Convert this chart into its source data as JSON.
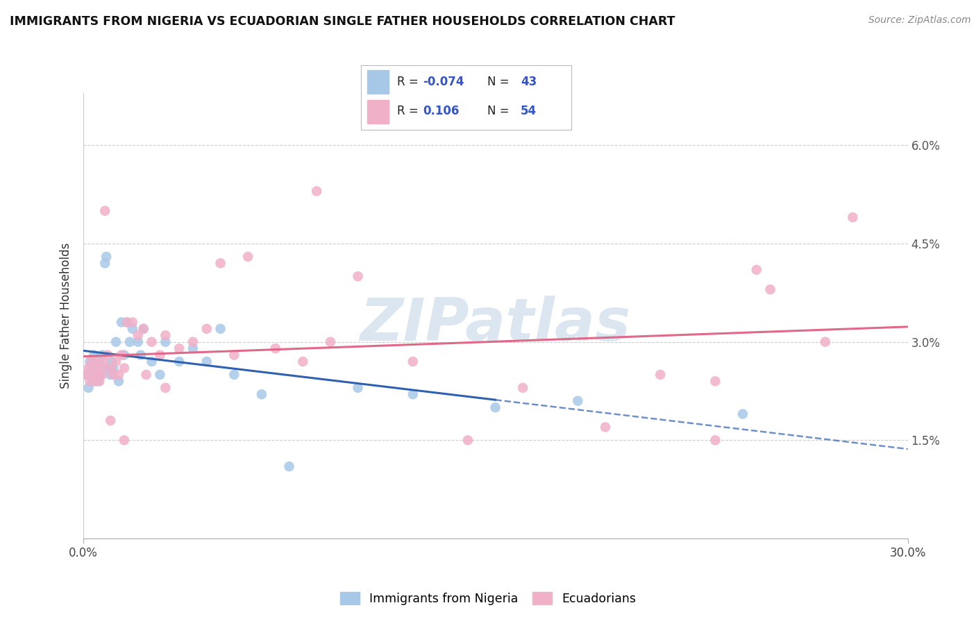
{
  "title": "IMMIGRANTS FROM NIGERIA VS ECUADORIAN SINGLE FATHER HOUSEHOLDS CORRELATION CHART",
  "source": "Source: ZipAtlas.com",
  "ylabel": "Single Father Households",
  "xlim": [
    0.0,
    30.0
  ],
  "ylim": [
    0.0,
    6.8
  ],
  "yticks": [
    0.0,
    1.5,
    3.0,
    4.5,
    6.0
  ],
  "ytick_labels": [
    "",
    "1.5%",
    "3.0%",
    "4.5%",
    "6.0%"
  ],
  "xtick_labels": [
    "0.0%",
    "30.0%"
  ],
  "color_blue": "#a8c8e8",
  "color_pink": "#f0b0c8",
  "line_color_blue": "#3060b0",
  "line_color_pink": "#e06888",
  "watermark_color": "#d8e4f0",
  "watermark_text": "ZIPatlas",
  "nigeria_x": [
    0.15,
    0.2,
    0.25,
    0.3,
    0.35,
    0.4,
    0.45,
    0.5,
    0.55,
    0.6,
    0.65,
    0.7,
    0.8,
    0.85,
    0.9,
    1.0,
    1.05,
    1.1,
    1.2,
    1.3,
    1.4,
    1.5,
    1.6,
    1.7,
    1.8,
    2.0,
    2.1,
    2.2,
    2.5,
    2.8,
    3.0,
    3.5,
    4.0,
    4.5,
    5.0,
    5.5,
    6.5,
    7.5,
    10.0,
    12.0,
    15.0,
    18.0,
    24.0
  ],
  "nigeria_y": [
    2.5,
    2.3,
    2.7,
    2.6,
    2.4,
    2.8,
    2.5,
    2.6,
    2.4,
    2.7,
    2.5,
    2.8,
    4.2,
    4.3,
    2.6,
    2.5,
    2.7,
    2.6,
    3.0,
    2.4,
    3.3,
    2.8,
    3.3,
    3.0,
    3.2,
    3.0,
    2.8,
    3.2,
    2.7,
    2.5,
    3.0,
    2.7,
    2.9,
    2.7,
    3.2,
    2.5,
    2.2,
    1.1,
    2.3,
    2.2,
    2.0,
    2.1,
    1.9
  ],
  "ecuador_x": [
    0.1,
    0.2,
    0.25,
    0.3,
    0.35,
    0.4,
    0.45,
    0.5,
    0.55,
    0.6,
    0.65,
    0.7,
    0.75,
    0.8,
    0.9,
    1.0,
    1.1,
    1.2,
    1.3,
    1.4,
    1.5,
    1.6,
    1.8,
    2.0,
    2.2,
    2.5,
    2.8,
    3.0,
    3.5,
    4.0,
    4.5,
    5.0,
    5.5,
    6.0,
    7.0,
    8.0,
    9.0,
    10.0,
    12.0,
    14.0,
    16.0,
    19.0,
    21.0,
    23.0,
    25.0,
    27.0,
    28.0,
    2.3,
    1.5,
    3.0,
    1.0,
    8.5,
    23.0,
    24.5
  ],
  "ecuador_y": [
    2.5,
    2.6,
    2.4,
    2.7,
    2.5,
    2.6,
    2.4,
    2.7,
    2.5,
    2.4,
    2.6,
    2.5,
    2.7,
    5.0,
    2.8,
    2.6,
    2.5,
    2.7,
    2.5,
    2.8,
    2.6,
    3.3,
    3.3,
    3.1,
    3.2,
    3.0,
    2.8,
    3.1,
    2.9,
    3.0,
    3.2,
    4.2,
    2.8,
    4.3,
    2.9,
    2.7,
    3.0,
    4.0,
    2.7,
    1.5,
    2.3,
    1.7,
    2.5,
    2.4,
    3.8,
    3.0,
    4.9,
    2.5,
    1.5,
    2.3,
    1.8,
    5.3,
    1.5,
    4.1
  ]
}
